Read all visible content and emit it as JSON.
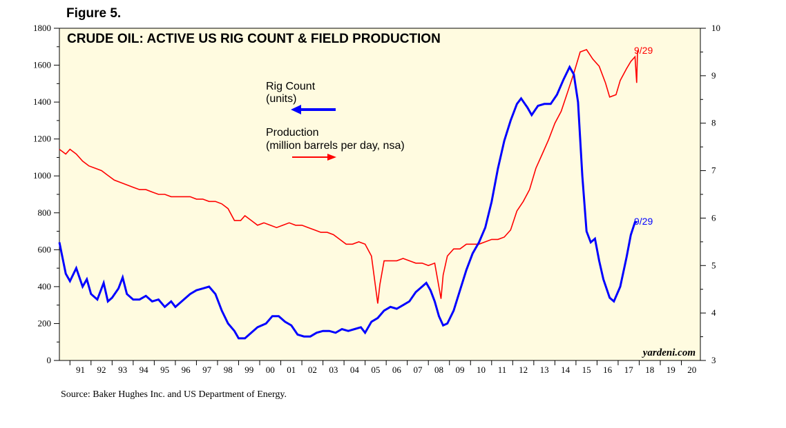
{
  "figure_label": "Figure 5.",
  "source": "Source: Baker Hughes Inc. and US Department of Energy.",
  "watermark": "yardeni.com",
  "colors": {
    "plot_background": "#fffbe0",
    "rig_count": "#0000ff",
    "production": "#ff0000"
  },
  "chart_data": {
    "type": "line",
    "title": "CRUDE OIL: ACTIVE US RIG COUNT & FIELD PRODUCTION",
    "x_range": [
      1990.5,
      2020.9
    ],
    "x_tick_labels": [
      "91",
      "92",
      "93",
      "94",
      "95",
      "96",
      "97",
      "98",
      "99",
      "00",
      "01",
      "02",
      "03",
      "04",
      "05",
      "06",
      "07",
      "08",
      "09",
      "10",
      "11",
      "12",
      "13",
      "14",
      "15",
      "16",
      "17",
      "18",
      "19",
      "20"
    ],
    "y_left": {
      "label": "Rig Count (units)",
      "range": [
        0,
        1800
      ],
      "ticks": [
        0,
        200,
        400,
        600,
        800,
        1000,
        1200,
        1400,
        1600,
        1800
      ]
    },
    "y_right": {
      "label": "Production (million barrels per day, nsa)",
      "range": [
        3,
        10
      ],
      "ticks": [
        3,
        4,
        5,
        6,
        7,
        8,
        9,
        10
      ]
    },
    "series": [
      {
        "name": "Rig Count",
        "unit_label": "(units)",
        "axis": "left",
        "end_label": "9/29",
        "points": [
          [
            1990.5,
            640
          ],
          [
            1990.8,
            470
          ],
          [
            1991.0,
            430
          ],
          [
            1991.3,
            500
          ],
          [
            1991.6,
            400
          ],
          [
            1991.8,
            440
          ],
          [
            1992.0,
            360
          ],
          [
            1992.3,
            330
          ],
          [
            1992.6,
            420
          ],
          [
            1992.8,
            320
          ],
          [
            1993.0,
            340
          ],
          [
            1993.3,
            390
          ],
          [
            1993.5,
            450
          ],
          [
            1993.7,
            360
          ],
          [
            1994.0,
            330
          ],
          [
            1994.3,
            330
          ],
          [
            1994.6,
            350
          ],
          [
            1994.9,
            320
          ],
          [
            1995.2,
            330
          ],
          [
            1995.5,
            290
          ],
          [
            1995.8,
            320
          ],
          [
            1996.0,
            290
          ],
          [
            1996.4,
            330
          ],
          [
            1996.7,
            360
          ],
          [
            1997.0,
            380
          ],
          [
            1997.3,
            390
          ],
          [
            1997.6,
            400
          ],
          [
            1997.9,
            360
          ],
          [
            1998.2,
            270
          ],
          [
            1998.5,
            200
          ],
          [
            1998.8,
            160
          ],
          [
            1999.0,
            120
          ],
          [
            1999.3,
            120
          ],
          [
            1999.6,
            150
          ],
          [
            1999.9,
            180
          ],
          [
            2000.3,
            200
          ],
          [
            2000.6,
            240
          ],
          [
            2000.9,
            240
          ],
          [
            2001.2,
            210
          ],
          [
            2001.5,
            190
          ],
          [
            2001.8,
            140
          ],
          [
            2002.1,
            130
          ],
          [
            2002.4,
            130
          ],
          [
            2002.7,
            150
          ],
          [
            2003.0,
            160
          ],
          [
            2003.3,
            160
          ],
          [
            2003.6,
            150
          ],
          [
            2003.9,
            170
          ],
          [
            2004.2,
            160
          ],
          [
            2004.5,
            170
          ],
          [
            2004.8,
            180
          ],
          [
            2005.0,
            150
          ],
          [
            2005.3,
            210
          ],
          [
            2005.6,
            230
          ],
          [
            2005.9,
            270
          ],
          [
            2006.2,
            290
          ],
          [
            2006.5,
            280
          ],
          [
            2006.8,
            300
          ],
          [
            2007.1,
            320
          ],
          [
            2007.4,
            370
          ],
          [
            2007.7,
            400
          ],
          [
            2007.9,
            420
          ],
          [
            2008.1,
            380
          ],
          [
            2008.3,
            320
          ],
          [
            2008.5,
            240
          ],
          [
            2008.7,
            190
          ],
          [
            2008.9,
            200
          ],
          [
            2009.2,
            270
          ],
          [
            2009.5,
            380
          ],
          [
            2009.8,
            490
          ],
          [
            2010.1,
            580
          ],
          [
            2010.4,
            640
          ],
          [
            2010.7,
            720
          ],
          [
            2011.0,
            860
          ],
          [
            2011.3,
            1040
          ],
          [
            2011.6,
            1190
          ],
          [
            2011.9,
            1300
          ],
          [
            2012.2,
            1390
          ],
          [
            2012.4,
            1420
          ],
          [
            2012.7,
            1370
          ],
          [
            2012.9,
            1330
          ],
          [
            2013.2,
            1380
          ],
          [
            2013.5,
            1390
          ],
          [
            2013.8,
            1390
          ],
          [
            2014.1,
            1440
          ],
          [
            2014.4,
            1520
          ],
          [
            2014.7,
            1590
          ],
          [
            2014.9,
            1550
          ],
          [
            2015.1,
            1400
          ],
          [
            2015.3,
            1000
          ],
          [
            2015.5,
            700
          ],
          [
            2015.7,
            640
          ],
          [
            2015.9,
            660
          ],
          [
            2016.1,
            540
          ],
          [
            2016.3,
            440
          ],
          [
            2016.6,
            340
          ],
          [
            2016.8,
            320
          ],
          [
            2017.1,
            400
          ],
          [
            2017.4,
            560
          ],
          [
            2017.6,
            680
          ],
          [
            2017.8,
            750
          ],
          [
            2017.9,
            750
          ]
        ]
      },
      {
        "name": "Production",
        "unit_label": "(million barrels per day, nsa)",
        "axis": "right",
        "end_label": "9/29",
        "points": [
          [
            1990.5,
            7.45
          ],
          [
            1990.8,
            7.35
          ],
          [
            1991.0,
            7.45
          ],
          [
            1991.3,
            7.35
          ],
          [
            1991.6,
            7.2
          ],
          [
            1991.9,
            7.1
          ],
          [
            1992.2,
            7.05
          ],
          [
            1992.5,
            7.0
          ],
          [
            1992.8,
            6.9
          ],
          [
            1993.1,
            6.8
          ],
          [
            1993.4,
            6.75
          ],
          [
            1993.7,
            6.7
          ],
          [
            1994.0,
            6.65
          ],
          [
            1994.3,
            6.6
          ],
          [
            1994.6,
            6.6
          ],
          [
            1994.9,
            6.55
          ],
          [
            1995.2,
            6.5
          ],
          [
            1995.5,
            6.5
          ],
          [
            1995.8,
            6.45
          ],
          [
            1996.1,
            6.45
          ],
          [
            1996.4,
            6.45
          ],
          [
            1996.7,
            6.45
          ],
          [
            1997.0,
            6.4
          ],
          [
            1997.3,
            6.4
          ],
          [
            1997.6,
            6.35
          ],
          [
            1997.9,
            6.35
          ],
          [
            1998.2,
            6.3
          ],
          [
            1998.5,
            6.2
          ],
          [
            1998.8,
            5.95
          ],
          [
            1999.1,
            5.95
          ],
          [
            1999.3,
            6.05
          ],
          [
            1999.6,
            5.95
          ],
          [
            1999.9,
            5.85
          ],
          [
            2000.2,
            5.9
          ],
          [
            2000.5,
            5.85
          ],
          [
            2000.8,
            5.8
          ],
          [
            2001.1,
            5.85
          ],
          [
            2001.4,
            5.9
          ],
          [
            2001.7,
            5.85
          ],
          [
            2002.0,
            5.85
          ],
          [
            2002.3,
            5.8
          ],
          [
            2002.6,
            5.75
          ],
          [
            2002.9,
            5.7
          ],
          [
            2003.2,
            5.7
          ],
          [
            2003.5,
            5.65
          ],
          [
            2003.8,
            5.55
          ],
          [
            2004.1,
            5.45
          ],
          [
            2004.4,
            5.45
          ],
          [
            2004.7,
            5.5
          ],
          [
            2005.0,
            5.45
          ],
          [
            2005.3,
            5.2
          ],
          [
            2005.6,
            4.2
          ],
          [
            2005.7,
            4.6
          ],
          [
            2005.9,
            5.1
          ],
          [
            2006.2,
            5.1
          ],
          [
            2006.5,
            5.1
          ],
          [
            2006.8,
            5.15
          ],
          [
            2007.1,
            5.1
          ],
          [
            2007.4,
            5.05
          ],
          [
            2007.7,
            5.05
          ],
          [
            2008.0,
            5.0
          ],
          [
            2008.3,
            5.05
          ],
          [
            2008.6,
            4.3
          ],
          [
            2008.7,
            4.8
          ],
          [
            2008.9,
            5.2
          ],
          [
            2009.2,
            5.35
          ],
          [
            2009.5,
            5.35
          ],
          [
            2009.8,
            5.45
          ],
          [
            2010.1,
            5.45
          ],
          [
            2010.4,
            5.45
          ],
          [
            2010.7,
            5.5
          ],
          [
            2011.0,
            5.55
          ],
          [
            2011.3,
            5.55
          ],
          [
            2011.6,
            5.6
          ],
          [
            2011.9,
            5.75
          ],
          [
            2012.2,
            6.15
          ],
          [
            2012.5,
            6.35
          ],
          [
            2012.8,
            6.6
          ],
          [
            2013.1,
            7.05
          ],
          [
            2013.4,
            7.35
          ],
          [
            2013.7,
            7.65
          ],
          [
            2014.0,
            8.0
          ],
          [
            2014.3,
            8.25
          ],
          [
            2014.6,
            8.65
          ],
          [
            2014.9,
            9.05
          ],
          [
            2015.2,
            9.5
          ],
          [
            2015.5,
            9.55
          ],
          [
            2015.8,
            9.35
          ],
          [
            2016.1,
            9.2
          ],
          [
            2016.4,
            8.85
          ],
          [
            2016.6,
            8.55
          ],
          [
            2016.9,
            8.6
          ],
          [
            2017.1,
            8.9
          ],
          [
            2017.4,
            9.15
          ],
          [
            2017.6,
            9.3
          ],
          [
            2017.8,
            9.4
          ],
          [
            2017.88,
            8.85
          ],
          [
            2017.92,
            9.5
          ],
          [
            2017.96,
            9.55
          ]
        ]
      }
    ]
  }
}
